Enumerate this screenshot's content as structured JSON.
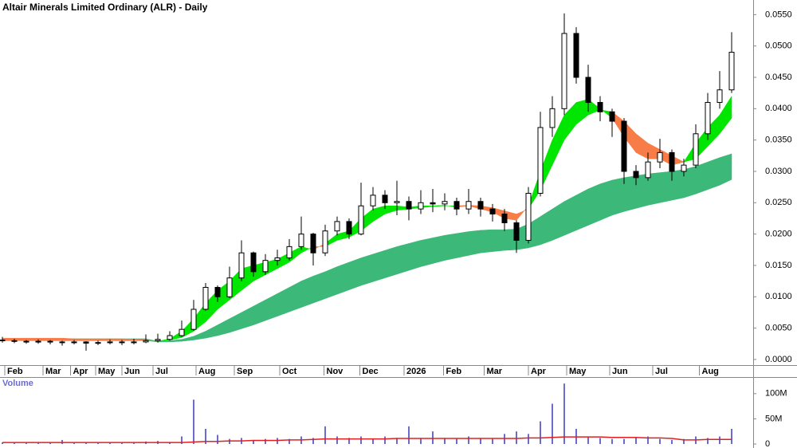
{
  "chart_data": [
    {
      "type": "candlestick",
      "title": "Altair Minerals Limited Ordinary (ALR) - Daily",
      "xlim": [
        -0.2,
        62.8
      ],
      "xticks": [
        {
          "value": 0.2,
          "label": "Feb"
        },
        {
          "value": 3.4,
          "label": "Mar"
        },
        {
          "value": 5.7,
          "label": "Apr"
        },
        {
          "value": 7.8,
          "label": "May"
        },
        {
          "value": 10,
          "label": "Jun"
        },
        {
          "value": 12.6,
          "label": "Jul"
        },
        {
          "value": 16.2,
          "label": "Aug"
        },
        {
          "value": 19.4,
          "label": "Sep"
        },
        {
          "value": 23.2,
          "label": "Oct"
        },
        {
          "value": 26.9,
          "label": "Nov"
        },
        {
          "value": 29.9,
          "label": "Dec"
        },
        {
          "value": 33.6,
          "label": "2026"
        },
        {
          "value": 36.9,
          "label": "Feb"
        },
        {
          "value": 40.3,
          "label": "Mar"
        },
        {
          "value": 44,
          "label": "Apr"
        },
        {
          "value": 47.2,
          "label": "May"
        },
        {
          "value": 50.8,
          "label": "Jun"
        },
        {
          "value": 54.4,
          "label": "Jul"
        },
        {
          "value": 58.3,
          "label": "Aug"
        }
      ],
      "ylim": [
        -0.0009,
        0.0567
      ],
      "yticks": [
        {
          "value": 0,
          "label": "0.0000"
        },
        {
          "value": 0.005,
          "label": "0.0050"
        },
        {
          "value": 0.01,
          "label": "0.0100"
        },
        {
          "value": 0.015,
          "label": "0.0150"
        },
        {
          "value": 0.02,
          "label": "0.0200"
        },
        {
          "value": 0.025,
          "label": "0.0250"
        },
        {
          "value": 0.03,
          "label": "0.0300"
        },
        {
          "value": 0.035,
          "label": "0.0350"
        },
        {
          "value": 0.04,
          "label": "0.0400"
        },
        {
          "value": 0.045,
          "label": "0.0450"
        },
        {
          "value": 0.05,
          "label": "0.0500"
        },
        {
          "value": 0.055,
          "label": "0.0550"
        }
      ],
      "up_color": "#ffffff",
      "down_color": "#000000",
      "open": [
        0.0031,
        0.003,
        0.0029,
        0.0028,
        0.0029,
        0.0028,
        0.0027,
        0.0028,
        0.0026,
        0.0027,
        0.0028,
        0.0027,
        0.0028,
        0.003,
        0.0032,
        0.0038,
        0.0048,
        0.008,
        0.0115,
        0.01,
        0.013,
        0.017,
        0.014,
        0.0158,
        0.0162,
        0.018,
        0.02,
        0.017,
        0.0205,
        0.022,
        0.02,
        0.0245,
        0.0262,
        0.025,
        0.0252,
        0.024,
        0.025,
        0.0248,
        0.0252,
        0.024,
        0.0252,
        0.024,
        0.0232,
        0.0218,
        0.019,
        0.0265,
        0.037,
        0.04,
        0.052,
        0.045,
        0.041,
        0.0395,
        0.038,
        0.03,
        0.029,
        0.0315,
        0.033,
        0.03,
        0.031,
        0.036,
        0.041,
        0.043
      ],
      "high": [
        0.0036,
        0.0033,
        0.0031,
        0.0032,
        0.0031,
        0.003,
        0.0031,
        0.0029,
        0.003,
        0.0032,
        0.0031,
        0.0033,
        0.004,
        0.0041,
        0.0045,
        0.0062,
        0.0095,
        0.0122,
        0.0118,
        0.0148,
        0.019,
        0.0172,
        0.0168,
        0.0175,
        0.0192,
        0.0228,
        0.0202,
        0.0215,
        0.0228,
        0.0225,
        0.0282,
        0.0275,
        0.027,
        0.0285,
        0.026,
        0.027,
        0.0272,
        0.0265,
        0.0258,
        0.0272,
        0.0258,
        0.0248,
        0.024,
        0.0222,
        0.0275,
        0.0395,
        0.042,
        0.0552,
        0.053,
        0.047,
        0.042,
        0.04,
        0.0385,
        0.031,
        0.033,
        0.0352,
        0.0335,
        0.032,
        0.0375,
        0.0425,
        0.046,
        0.0522
      ],
      "low": [
        0.0027,
        0.0026,
        0.0025,
        0.0025,
        0.0024,
        0.0022,
        0.0024,
        0.0014,
        0.0023,
        0.0024,
        0.0023,
        0.0024,
        0.0026,
        0.0027,
        0.003,
        0.0036,
        0.0046,
        0.0078,
        0.0092,
        0.0098,
        0.0125,
        0.0132,
        0.0135,
        0.015,
        0.0158,
        0.0175,
        0.015,
        0.0165,
        0.0198,
        0.0192,
        0.0198,
        0.0238,
        0.024,
        0.023,
        0.0222,
        0.0232,
        0.0235,
        0.0238,
        0.023,
        0.0232,
        0.0228,
        0.022,
        0.0205,
        0.017,
        0.0185,
        0.026,
        0.0355,
        0.039,
        0.044,
        0.0395,
        0.038,
        0.0355,
        0.028,
        0.0278,
        0.0285,
        0.0305,
        0.0285,
        0.0292,
        0.0305,
        0.035,
        0.04,
        0.0425
      ],
      "close": [
        0.003,
        0.0029,
        0.0028,
        0.0029,
        0.0028,
        0.0027,
        0.0028,
        0.0026,
        0.0027,
        0.0028,
        0.0027,
        0.0028,
        0.003,
        0.0032,
        0.0038,
        0.0048,
        0.008,
        0.0115,
        0.01,
        0.013,
        0.017,
        0.014,
        0.0158,
        0.0162,
        0.018,
        0.02,
        0.017,
        0.0205,
        0.022,
        0.02,
        0.0245,
        0.0262,
        0.025,
        0.0252,
        0.024,
        0.025,
        0.0248,
        0.0252,
        0.024,
        0.0252,
        0.024,
        0.0232,
        0.0218,
        0.019,
        0.0265,
        0.037,
        0.04,
        0.052,
        0.045,
        0.041,
        0.0395,
        0.038,
        0.03,
        0.029,
        0.0315,
        0.033,
        0.03,
        0.031,
        0.036,
        0.041,
        0.043,
        0.049
      ],
      "bands": [
        {
          "up_color": "#3cb878",
          "down_color": "#3cb878",
          "fast": [
            0.0033,
            0.0033,
            0.0033,
            0.0033,
            0.0033,
            0.0033,
            0.0033,
            0.0033,
            0.0033,
            0.0033,
            0.0033,
            0.0033,
            0.0033,
            0.0029,
            0.003,
            0.0032,
            0.0037,
            0.0045,
            0.0055,
            0.0065,
            0.0075,
            0.0085,
            0.0095,
            0.0105,
            0.0115,
            0.0125,
            0.0133,
            0.014,
            0.0148,
            0.0155,
            0.0162,
            0.0168,
            0.0174,
            0.018,
            0.0185,
            0.019,
            0.0194,
            0.0198,
            0.0201,
            0.0204,
            0.0206,
            0.0207,
            0.0207,
            0.0208,
            0.0216,
            0.0228,
            0.024,
            0.0252,
            0.0262,
            0.0272,
            0.028,
            0.0286,
            0.029,
            0.0293,
            0.0296,
            0.0298,
            0.03,
            0.0303,
            0.0308,
            0.0315,
            0.0322,
            0.0328
          ],
          "slow": [
            0.003,
            0.003,
            0.003,
            0.003,
            0.003,
            0.003,
            0.003,
            0.003,
            0.003,
            0.003,
            0.003,
            0.003,
            0.003,
            0.0028,
            0.0028,
            0.0029,
            0.0031,
            0.0034,
            0.0038,
            0.0043,
            0.0049,
            0.0055,
            0.0062,
            0.0069,
            0.0076,
            0.0083,
            0.009,
            0.0097,
            0.0104,
            0.0111,
            0.0118,
            0.0124,
            0.013,
            0.0136,
            0.0142,
            0.0148,
            0.0153,
            0.0158,
            0.0162,
            0.0166,
            0.017,
            0.0172,
            0.0174,
            0.0175,
            0.0178,
            0.0183,
            0.019,
            0.0198,
            0.0206,
            0.0214,
            0.0222,
            0.023,
            0.0236,
            0.0241,
            0.0246,
            0.025,
            0.0254,
            0.0258,
            0.0264,
            0.0271,
            0.0278,
            0.0287
          ]
        },
        {
          "up_color": "#00e600",
          "down_color": "#f87c48",
          "fast": [
            0.003,
            0.003,
            0.003,
            0.003,
            0.003,
            0.003,
            0.003,
            0.003,
            0.003,
            0.003,
            0.003,
            0.003,
            0.003,
            0.0029,
            0.0033,
            0.0045,
            0.0065,
            0.009,
            0.011,
            0.0125,
            0.0145,
            0.015,
            0.0155,
            0.016,
            0.017,
            0.018,
            0.0175,
            0.0185,
            0.02,
            0.0205,
            0.0225,
            0.024,
            0.0245,
            0.0245,
            0.0243,
            0.0245,
            0.0245,
            0.0246,
            0.0243,
            0.0245,
            0.024,
            0.0235,
            0.0225,
            0.0222,
            0.0245,
            0.03,
            0.035,
            0.039,
            0.041,
            0.0415,
            0.04,
            0.0385,
            0.0355,
            0.033,
            0.032,
            0.032,
            0.031,
            0.0315,
            0.0345,
            0.037,
            0.039,
            0.042
          ],
          "slow": [
            0.0034,
            0.0034,
            0.0034,
            0.0034,
            0.0034,
            0.0034,
            0.0033,
            0.0033,
            0.0033,
            0.0033,
            0.0033,
            0.0032,
            0.0031,
            0.0029,
            0.0031,
            0.0035,
            0.0045,
            0.006,
            0.008,
            0.0095,
            0.011,
            0.0125,
            0.0135,
            0.0145,
            0.0155,
            0.017,
            0.018,
            0.018,
            0.019,
            0.0195,
            0.0205,
            0.022,
            0.0232,
            0.0238,
            0.024,
            0.0242,
            0.0244,
            0.0245,
            0.0245,
            0.0246,
            0.0245,
            0.0242,
            0.0237,
            0.0232,
            0.024,
            0.027,
            0.031,
            0.035,
            0.0375,
            0.039,
            0.0398,
            0.0395,
            0.038,
            0.036,
            0.0345,
            0.0335,
            0.0325,
            0.0315,
            0.032,
            0.034,
            0.036,
            0.0385
          ]
        }
      ]
    },
    {
      "type": "bar",
      "title": "Volume",
      "xlim": [
        -0.2,
        62.8
      ],
      "ylim": [
        -4800000,
        125000000
      ],
      "yticks": [
        0,
        {
          "value": 50000000,
          "label": "50M"
        },
        {
          "value": 100000000,
          "label": "100M"
        }
      ],
      "color": "#6b6bd0",
      "average_color": "#e02020",
      "values": [
        3000000,
        2000000,
        2000000,
        2000000,
        2000000,
        8000000,
        2000000,
        2000000,
        2000000,
        2000000,
        2000000,
        2000000,
        5000000,
        6000000,
        4000000,
        15000000,
        88000000,
        30000000,
        18000000,
        10000000,
        12000000,
        8000000,
        10000000,
        12000000,
        10000000,
        15000000,
        12000000,
        35000000,
        15000000,
        12000000,
        15000000,
        10000000,
        15000000,
        12000000,
        35000000,
        12000000,
        25000000,
        12000000,
        10000000,
        15000000,
        12000000,
        10000000,
        20000000,
        25000000,
        20000000,
        45000000,
        80000000,
        120000000,
        30000000,
        15000000,
        12000000,
        10000000,
        10000000,
        12000000,
        15000000,
        10000000,
        8000000,
        10000000,
        15000000,
        12000000,
        15000000,
        30000000
      ],
      "average": [
        3000000,
        3000000,
        3000000,
        3000000,
        3000000,
        3000000,
        3000000,
        3000000,
        3000000,
        3000000,
        3000000,
        3000000,
        3000000,
        3000000,
        3000000,
        3000000,
        4000000,
        5000000,
        5000000,
        6000000,
        6000000,
        7000000,
        7000000,
        7000000,
        8000000,
        8000000,
        9000000,
        10000000,
        10000000,
        10000000,
        10000000,
        10000000,
        10000000,
        11000000,
        11000000,
        11000000,
        11000000,
        11000000,
        11000000,
        11000000,
        11000000,
        11000000,
        11000000,
        11000000,
        12000000,
        12000000,
        13000000,
        14000000,
        14000000,
        14000000,
        14000000,
        13000000,
        13000000,
        13000000,
        12000000,
        12000000,
        11000000,
        8000000,
        8000000,
        9000000,
        9000000,
        9000000
      ]
    }
  ]
}
